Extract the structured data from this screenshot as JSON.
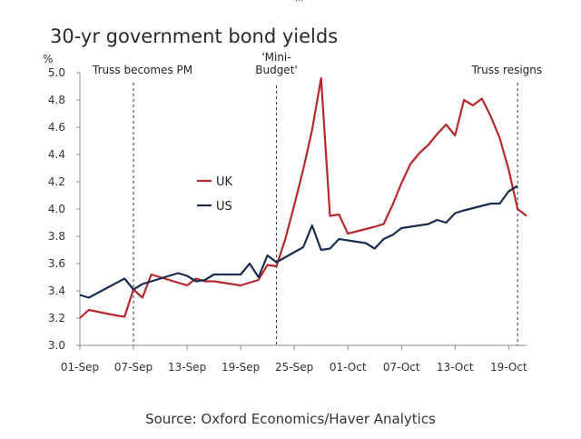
{
  "top_glyph": "...",
  "chart_data": {
    "type": "line",
    "title": "30-yr government bond yields",
    "ylabel": "%",
    "xlabel": "",
    "source": "Source: Oxford Economics/Haver Analytics",
    "ylim": [
      3.0,
      5.0
    ],
    "yticks": [
      "3.0",
      "3.2",
      "3.4",
      "3.6",
      "3.8",
      "4.0",
      "4.2",
      "4.4",
      "4.6",
      "4.8",
      "5.0"
    ],
    "xlim": [
      "2022-09-01",
      "2022-10-21"
    ],
    "xticks": [
      {
        "date": "2022-09-01",
        "label": "01-Sep"
      },
      {
        "date": "2022-09-07",
        "label": "07-Sep"
      },
      {
        "date": "2022-09-13",
        "label": "13-Sep"
      },
      {
        "date": "2022-09-19",
        "label": "19-Sep"
      },
      {
        "date": "2022-09-25",
        "label": "25-Sep"
      },
      {
        "date": "2022-10-01",
        "label": "01-Oct"
      },
      {
        "date": "2022-10-07",
        "label": "07-Oct"
      },
      {
        "date": "2022-10-13",
        "label": "13-Oct"
      },
      {
        "date": "2022-10-19",
        "label": "19-Oct"
      }
    ],
    "grid": false,
    "legend_position": "center-left",
    "annotations": [
      {
        "date": "2022-09-07",
        "lines": [
          "Truss becomes PM"
        ],
        "anchor": "start"
      },
      {
        "date": "2022-09-23",
        "lines": [
          "'Mini-",
          "Budget'"
        ],
        "anchor": "middle"
      },
      {
        "date": "2022-10-20",
        "lines": [
          "Truss resigns"
        ],
        "anchor": "end"
      }
    ],
    "series": [
      {
        "name": "UK",
        "color": "#b5282e",
        "points": [
          [
            "2022-09-01",
            3.2
          ],
          [
            "2022-09-02",
            3.26
          ],
          [
            "2022-09-05",
            3.22
          ],
          [
            "2022-09-06",
            3.21
          ],
          [
            "2022-09-07",
            3.41
          ],
          [
            "2022-09-08",
            3.35
          ],
          [
            "2022-09-09",
            3.52
          ],
          [
            "2022-09-12",
            3.46
          ],
          [
            "2022-09-13",
            3.44
          ],
          [
            "2022-09-14",
            3.49
          ],
          [
            "2022-09-15",
            3.47
          ],
          [
            "2022-09-16",
            3.47
          ],
          [
            "2022-09-19",
            3.44
          ],
          [
            "2022-09-20",
            3.46
          ],
          [
            "2022-09-21",
            3.48
          ],
          [
            "2022-09-22",
            3.59
          ],
          [
            "2022-09-23",
            3.58
          ],
          [
            "2022-09-24",
            3.78
          ],
          [
            "2022-09-25",
            4.03
          ],
          [
            "2022-09-26",
            4.29
          ],
          [
            "2022-09-27",
            4.58
          ],
          [
            "2022-09-28",
            4.96
          ],
          [
            "2022-09-29",
            3.95
          ],
          [
            "2022-09-30",
            3.96
          ],
          [
            "2022-10-01",
            3.82
          ],
          [
            "2022-10-04",
            3.87
          ],
          [
            "2022-10-05",
            3.89
          ],
          [
            "2022-10-06",
            4.03
          ],
          [
            "2022-10-07",
            4.19
          ],
          [
            "2022-10-08",
            4.33
          ],
          [
            "2022-10-09",
            4.41
          ],
          [
            "2022-10-10",
            4.47
          ],
          [
            "2022-10-11",
            4.55
          ],
          [
            "2022-10-12",
            4.62
          ],
          [
            "2022-10-13",
            4.54
          ],
          [
            "2022-10-14",
            4.8
          ],
          [
            "2022-10-15",
            4.76
          ],
          [
            "2022-10-16",
            4.81
          ],
          [
            "2022-10-17",
            4.68
          ],
          [
            "2022-10-18",
            4.52
          ],
          [
            "2022-10-19",
            4.29
          ],
          [
            "2022-10-20",
            4.0
          ],
          [
            "2022-10-21",
            3.95
          ]
        ]
      },
      {
        "name": "US",
        "color": "#1b2d4f",
        "points": [
          [
            "2022-09-01",
            3.37
          ],
          [
            "2022-09-02",
            3.35
          ],
          [
            "2022-09-06",
            3.49
          ],
          [
            "2022-09-07",
            3.41
          ],
          [
            "2022-09-08",
            3.45
          ],
          [
            "2022-09-12",
            3.53
          ],
          [
            "2022-09-13",
            3.51
          ],
          [
            "2022-09-14",
            3.47
          ],
          [
            "2022-09-15",
            3.48
          ],
          [
            "2022-09-16",
            3.52
          ],
          [
            "2022-09-19",
            3.52
          ],
          [
            "2022-09-20",
            3.6
          ],
          [
            "2022-09-21",
            3.5
          ],
          [
            "2022-09-22",
            3.66
          ],
          [
            "2022-09-23",
            3.61
          ],
          [
            "2022-09-26",
            3.72
          ],
          [
            "2022-09-27",
            3.88
          ],
          [
            "2022-09-28",
            3.7
          ],
          [
            "2022-09-29",
            3.71
          ],
          [
            "2022-09-30",
            3.78
          ],
          [
            "2022-10-03",
            3.75
          ],
          [
            "2022-10-04",
            3.71
          ],
          [
            "2022-10-05",
            3.78
          ],
          [
            "2022-10-06",
            3.81
          ],
          [
            "2022-10-07",
            3.86
          ],
          [
            "2022-10-10",
            3.89
          ],
          [
            "2022-10-11",
            3.92
          ],
          [
            "2022-10-12",
            3.9
          ],
          [
            "2022-10-13",
            3.97
          ],
          [
            "2022-10-14",
            3.99
          ],
          [
            "2022-10-17",
            4.04
          ],
          [
            "2022-10-18",
            4.04
          ],
          [
            "2022-10-19",
            4.13
          ],
          [
            "2022-10-20",
            4.17
          ]
        ]
      }
    ]
  }
}
